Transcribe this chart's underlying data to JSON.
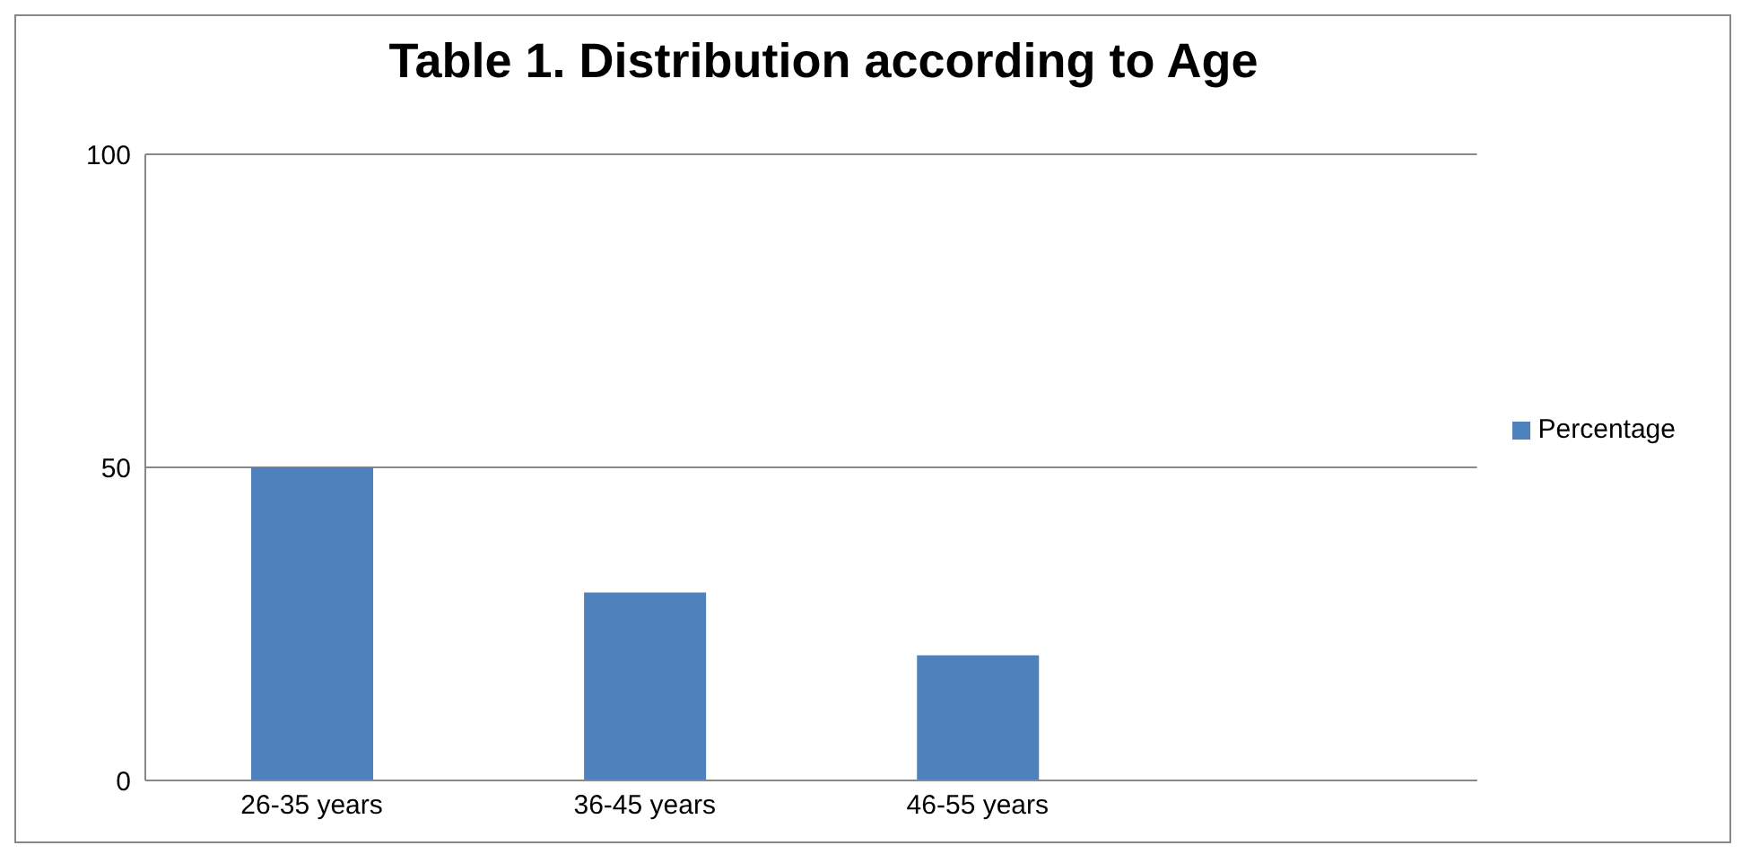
{
  "chart_data": {
    "type": "bar",
    "title": "Table 1. Distribution according to Age",
    "categories": [
      "26-35 years",
      "36-45 years",
      "46-55 years",
      null
    ],
    "series": [
      {
        "name": "Percentage",
        "color": "#4f81bd",
        "values": [
          50,
          30,
          20,
          null
        ]
      }
    ],
    "ylim": [
      0,
      100
    ],
    "yticks": [
      0,
      50,
      100
    ],
    "grid": "y",
    "legend": "right"
  }
}
